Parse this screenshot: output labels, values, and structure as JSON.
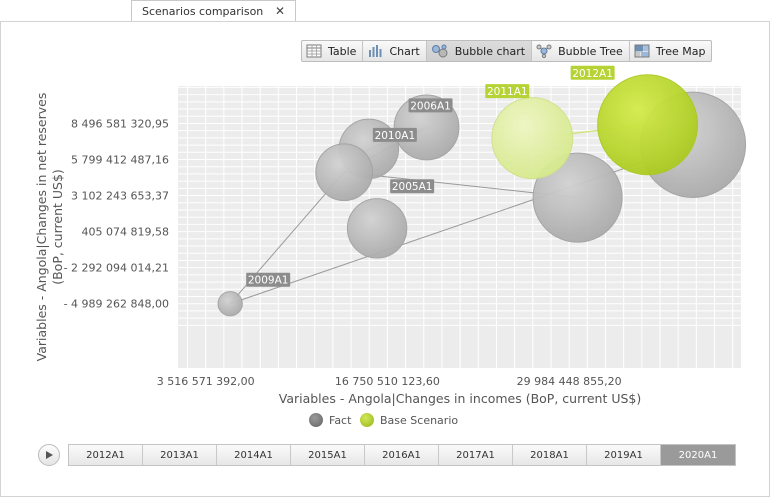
{
  "tab": {
    "label": "Scenarios comparison",
    "close_glyph": "✕"
  },
  "toolbar": {
    "buttons": [
      {
        "label": "Table",
        "icon": "table-icon",
        "active": false
      },
      {
        "label": "Chart",
        "icon": "bar-chart-icon",
        "active": false
      },
      {
        "label": "Bubble chart",
        "icon": "bubble-chart-icon",
        "active": true
      },
      {
        "label": "Bubble Tree",
        "icon": "bubble-tree-icon",
        "active": false
      },
      {
        "label": "Tree Map",
        "icon": "tree-map-icon",
        "active": false
      }
    ]
  },
  "chart_data": {
    "type": "scatter",
    "xlabel": "Variables - Angola|Changes in incomes (BoP, current US$)",
    "ylabel_lines": [
      "Variables - Angola|Changes in net reserves",
      "(BoP, current US$)"
    ],
    "x_ticks": [
      {
        "value": 3516571392.0,
        "label": "3 516 571 392,00"
      },
      {
        "value": 16750510123.6,
        "label": "16 750 510 123,60"
      },
      {
        "value": 29984448855.2,
        "label": "29 984 448 855,20"
      }
    ],
    "y_ticks": [
      {
        "value": 8496581320.95,
        "label": "8 496 581 320,95"
      },
      {
        "value": 5799412487.16,
        "label": "5 799 412 487,16"
      },
      {
        "value": 3102243653.37,
        "label": "3 102 243 653,37"
      },
      {
        "value": 405074819.58,
        "label": "405 074 819,58"
      },
      {
        "value": -2292094014.21,
        "label": "- 2 292 094 014,21"
      },
      {
        "value": -4989262848.0,
        "label": "- 4 989 262 848,00"
      }
    ],
    "xlim": [
      1500000000,
      42500000000
    ],
    "ylim": [
      -9800000000,
      11300000000
    ],
    "grid": true,
    "legend_placement": "bottom",
    "colors": {
      "fact": "#b5b5b5",
      "base": "#bfdd2c"
    },
    "series": [
      {
        "name": "Fact",
        "color": "#8c8c8c",
        "points": [
          {
            "x": 5300000000,
            "y": -4990000000,
            "size": 0.09,
            "label": "2009A1",
            "label_visible": true
          },
          {
            "x": 13600000000,
            "y": 4850000000,
            "size": 0.21,
            "label": "2005A1",
            "label_visible": true
          },
          {
            "x": 15400000000,
            "y": 6600000000,
            "size": 0.22,
            "label": "2010A1",
            "label_visible": true
          },
          {
            "x": 19600000000,
            "y": 8200000000,
            "size": 0.24,
            "label": "2006A1",
            "label_visible": true
          },
          {
            "x": 16000000000,
            "y": 650000000,
            "size": 0.22,
            "label": "",
            "label_visible": false
          },
          {
            "x": 30600000000,
            "y": 2950000000,
            "size": 0.33,
            "label": "",
            "label_visible": false
          },
          {
            "x": 39000000000,
            "y": 6900000000,
            "size": 0.39,
            "label": "",
            "label_visible": false
          }
        ]
      },
      {
        "name": "Base Scenario",
        "color": "#b5d334",
        "points": [
          {
            "x": 27300000000,
            "y": 7400000000,
            "size": 0.3,
            "label": "2011A1",
            "label_visible": true
          },
          {
            "x": 35700000000,
            "y": 8400000000,
            "size": 0.37,
            "label": "2012A1",
            "label_visible": true
          }
        ]
      }
    ],
    "paths": [
      [
        "2009A1",
        "2005A1",
        "2010A1",
        "2006A1",
        "2005A1",
        "_f5"
      ],
      [
        "2009A1",
        "_f6"
      ]
    ]
  },
  "timeline": {
    "years": [
      "2012A1",
      "2013A1",
      "2014A1",
      "2015A1",
      "2016A1",
      "2017A1",
      "2018A1",
      "2019A1",
      "2020A1"
    ],
    "active_index": 8
  }
}
